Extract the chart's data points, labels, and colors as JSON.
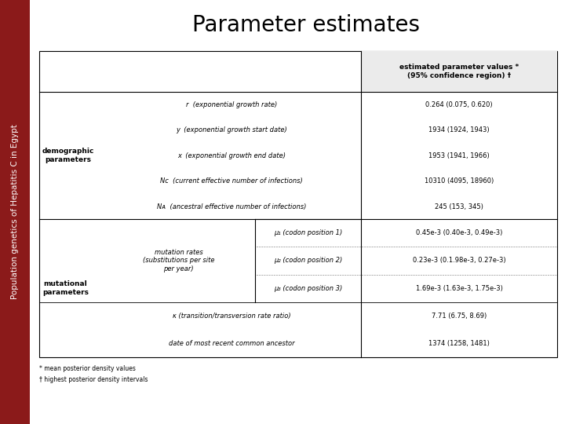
{
  "title": "Parameter estimates",
  "sidebar_text": "Population genetics of Hepatitis C in Egypt",
  "sidebar_color": "#8B1A1A",
  "bg_color": "#FFFFFF",
  "header_text": "estimated parameter values *\n(95% confidence region) †",
  "demographic_label": "demographic\nparameters",
  "mutational_label": "mutational\nparameters",
  "footnote1": "* mean posterior density values",
  "footnote2": "† highest posterior density intervals",
  "demo_rows": [
    [
      "r  (exponential growth rate)",
      "0.264 (0.075, 0.620)"
    ],
    [
      "y  (exponential growth start date)",
      "1934 (1924, 1943)"
    ],
    [
      "x  (exponential growth end date)",
      "1953 (1941, 1966)"
    ],
    [
      "Nᴄ  (current effective number of infections)",
      "10310 (4095, 18960)"
    ],
    [
      "Nᴀ  (ancestral effective number of infections)",
      "245 (153, 345)"
    ]
  ],
  "mut_sub_label": "mutation rates\n(substitutions per site\nper year)",
  "mut_sub_rows": [
    [
      "μ₁ (codon position 1)",
      "0.45e-3 (0.40e-3, 0.49e-3)"
    ],
    [
      "μ₂ (codon position 2)",
      "0.23e-3 (0.1.98e-3, 0.27e-3)"
    ],
    [
      "μ₃ (codon position 3)",
      "1.69e-3 (1.63e-3, 1.75e-3)"
    ]
  ],
  "mut_other_rows": [
    [
      "κ (transition/transversion rate ratio)",
      "7.71 (6.75, 8.69)"
    ],
    [
      "date of most recent common ancestor",
      "1374 (1258, 1481)"
    ]
  ],
  "title_fontsize": 20,
  "header_fontsize": 6.5,
  "body_fontsize": 6.0,
  "label_fontsize": 6.5,
  "footnote_fontsize": 5.5,
  "sidebar_fontsize": 7.5
}
